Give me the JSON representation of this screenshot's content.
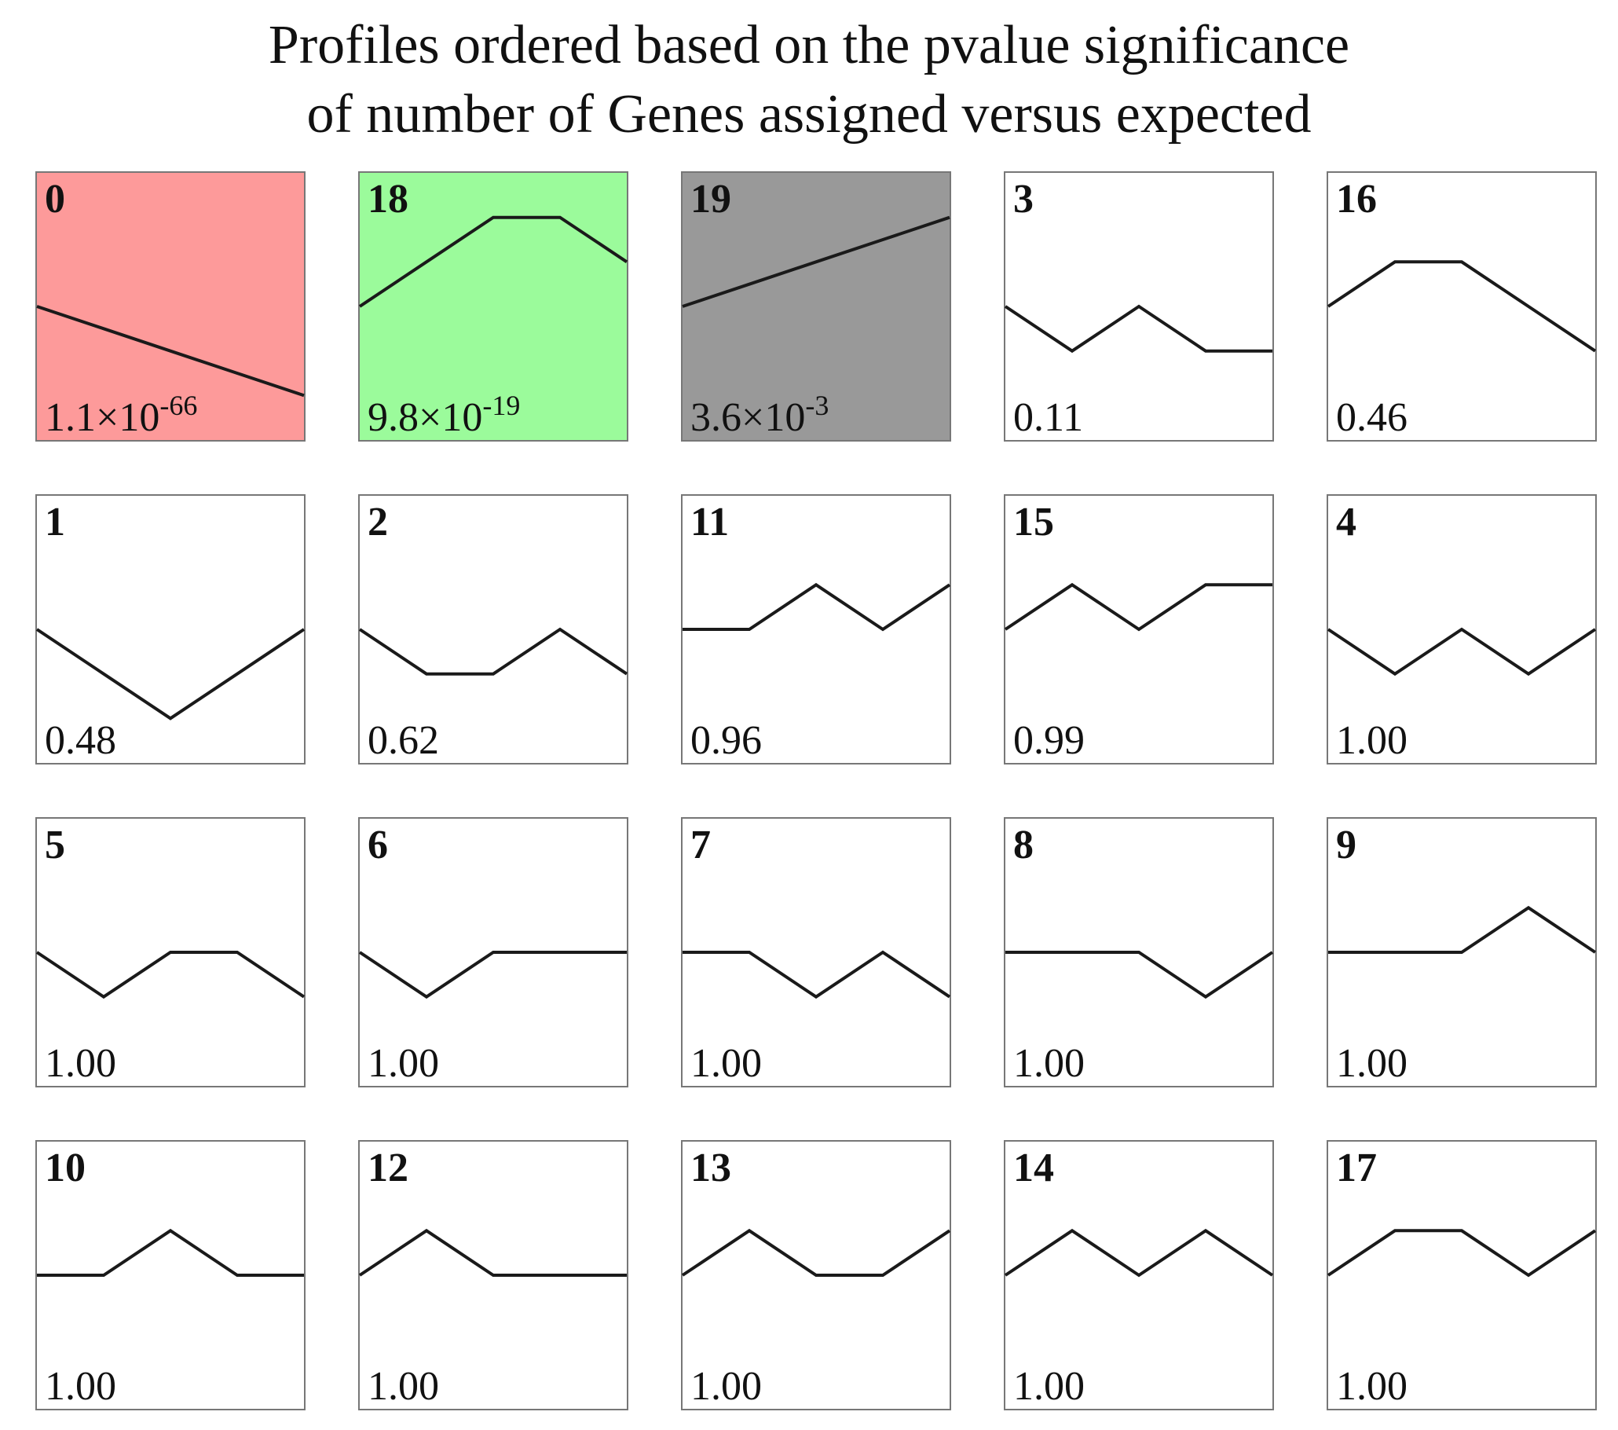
{
  "title": {
    "line1": "Profiles ordered based on the pvalue significance",
    "line2": "of number of Genes assigned versus expected"
  },
  "colors": {
    "red": "#fd9a9a",
    "green": "#9bfb9b",
    "gray": "#999999",
    "white": "#ffffff",
    "line": "#1a1a1a"
  },
  "chart_data": {
    "type": "line",
    "y_range": [
      -3,
      3
    ],
    "time_points": 5,
    "profiles": [
      {
        "id": "0",
        "pvalue": {
          "mantissa": "1.1",
          "exp": "-66"
        },
        "color": "red",
        "values": [
          0,
          -0.5,
          -1,
          -1.5,
          -2
        ]
      },
      {
        "id": "18",
        "pvalue": {
          "mantissa": "9.8",
          "exp": "-19"
        },
        "color": "green",
        "values": [
          0,
          1,
          2,
          2,
          1
        ]
      },
      {
        "id": "19",
        "pvalue": {
          "mantissa": "3.6",
          "exp": "-3"
        },
        "color": "gray",
        "values": [
          0,
          0.5,
          1,
          1.5,
          2
        ]
      },
      {
        "id": "3",
        "pvalue": {
          "text": "0.11"
        },
        "color": "white",
        "values": [
          0,
          -1,
          0,
          -1,
          -1
        ]
      },
      {
        "id": "16",
        "pvalue": {
          "text": "0.46"
        },
        "color": "white",
        "values": [
          0,
          1,
          1,
          0,
          -1
        ]
      },
      {
        "id": "1",
        "pvalue": {
          "text": "0.48"
        },
        "color": "white",
        "values": [
          0,
          -1,
          -2,
          -1,
          0
        ]
      },
      {
        "id": "2",
        "pvalue": {
          "text": "0.62"
        },
        "color": "white",
        "values": [
          0,
          -1,
          -1,
          0,
          -1
        ]
      },
      {
        "id": "11",
        "pvalue": {
          "text": "0.96"
        },
        "color": "white",
        "values": [
          0,
          0,
          1,
          0,
          1
        ]
      },
      {
        "id": "15",
        "pvalue": {
          "text": "0.99"
        },
        "color": "white",
        "values": [
          0,
          1,
          0,
          1,
          1
        ]
      },
      {
        "id": "4",
        "pvalue": {
          "text": "1.00"
        },
        "color": "white",
        "values": [
          0,
          -1,
          0,
          -1,
          0
        ]
      },
      {
        "id": "5",
        "pvalue": {
          "text": "1.00"
        },
        "color": "white",
        "values": [
          0,
          -1,
          0,
          0,
          -1
        ]
      },
      {
        "id": "6",
        "pvalue": {
          "text": "1.00"
        },
        "color": "white",
        "values": [
          0,
          -1,
          0,
          0,
          0
        ]
      },
      {
        "id": "7",
        "pvalue": {
          "text": "1.00"
        },
        "color": "white",
        "values": [
          0,
          0,
          -1,
          0,
          -1
        ]
      },
      {
        "id": "8",
        "pvalue": {
          "text": "1.00"
        },
        "color": "white",
        "values": [
          0,
          0,
          0,
          -1,
          0
        ]
      },
      {
        "id": "9",
        "pvalue": {
          "text": "1.00"
        },
        "color": "white",
        "values": [
          0,
          0,
          0,
          1,
          0
        ]
      },
      {
        "id": "10",
        "pvalue": {
          "text": "1.00"
        },
        "color": "white",
        "values": [
          0,
          0,
          1,
          0,
          0
        ]
      },
      {
        "id": "12",
        "pvalue": {
          "text": "1.00"
        },
        "color": "white",
        "values": [
          0,
          1,
          0,
          0,
          0
        ]
      },
      {
        "id": "13",
        "pvalue": {
          "text": "1.00"
        },
        "color": "white",
        "values": [
          0,
          1,
          0,
          0,
          1
        ]
      },
      {
        "id": "14",
        "pvalue": {
          "text": "1.00"
        },
        "color": "white",
        "values": [
          0,
          1,
          0,
          1,
          0
        ]
      },
      {
        "id": "17",
        "pvalue": {
          "text": "1.00"
        },
        "color": "white",
        "values": [
          0,
          1,
          1,
          0,
          1
        ]
      }
    ]
  }
}
